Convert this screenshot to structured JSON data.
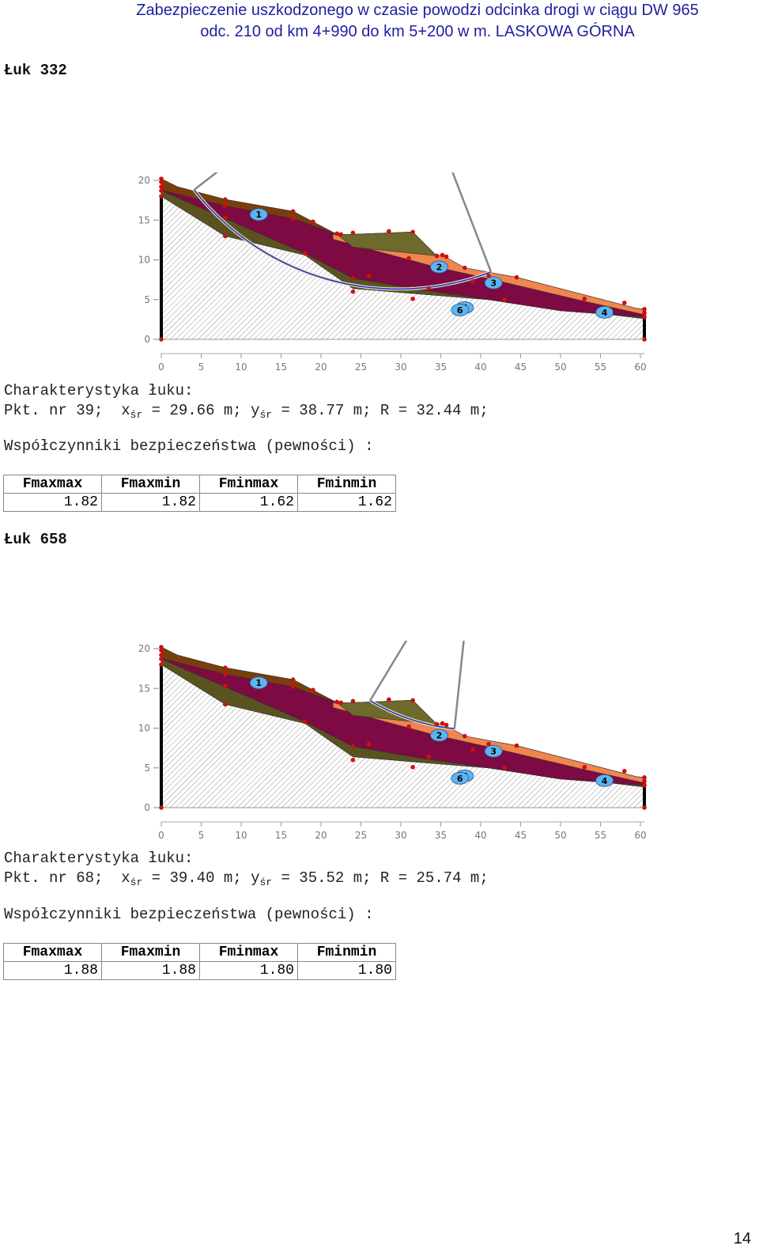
{
  "header": {
    "line1": "Zabezpieczenie uszkodzonego w czasie powodzi odcinka drogi  w ciągu DW 965",
    "line2": "odc. 210 od km 4+990 do km 5+200 w m. LASKOWA GÓRNA"
  },
  "arcs": [
    {
      "heading": "Łuk 332",
      "char_label": "Charakterystyka łuku:",
      "pkt": "Pkt. nr 39;",
      "xs": "x",
      "xs_sub": "śr",
      "xs_val": " = 29.66 m;",
      "ys": "y",
      "ys_sub": "śr",
      "ys_val": " = 38.77 m; R = 32.44 m;",
      "coeff_label": "Współczynniki bezpieczeństwa (pewności) :",
      "headers": [
        "Fmaxmax",
        "Fmaxmin",
        "Fminmax",
        "Fminmin"
      ],
      "values": [
        "1.82",
        "1.82",
        "1.62",
        "1.62"
      ]
    },
    {
      "heading": "Łuk 658",
      "char_label": "Charakterystyka łuku:",
      "pkt": "Pkt. nr 68;",
      "xs": "x",
      "xs_sub": "śr",
      "xs_val": " = 39.40 m;",
      "ys": "y",
      "ys_sub": "śr",
      "ys_val": " = 35.52 m; R = 25.74 m;",
      "coeff_label": "Współczynniki bezpieczeństwa (pewności) :",
      "headers": [
        "Fmaxmax",
        "Fmaxmin",
        "Fminmax",
        "Fminmin"
      ],
      "values": [
        "1.88",
        "1.88",
        "1.80",
        "1.80"
      ]
    }
  ],
  "chart_data": [
    {
      "type": "cross-section",
      "x_ticks": [
        "0",
        "5",
        "10",
        "15",
        "20",
        "25",
        "30",
        "35",
        "40",
        "45",
        "50",
        "55",
        "60"
      ],
      "y_ticks": [
        "0",
        "5",
        "10",
        "15",
        "20"
      ],
      "xlim": [
        0,
        60
      ],
      "ylim": [
        0,
        20
      ],
      "layer_labels": [
        "1",
        "2",
        "3",
        "4",
        "5",
        "6"
      ],
      "slip_circle": {
        "xc": 29.66,
        "yc": 38.77,
        "R": 32.44
      }
    },
    {
      "type": "cross-section",
      "x_ticks": [
        "0",
        "5",
        "10",
        "15",
        "20",
        "25",
        "30",
        "35",
        "40",
        "45",
        "50",
        "55",
        "60"
      ],
      "y_ticks": [
        "0",
        "5",
        "10",
        "15",
        "20"
      ],
      "xlim": [
        0,
        60
      ],
      "ylim": [
        0,
        20
      ],
      "layer_labels": [
        "1",
        "2",
        "3",
        "4",
        "5",
        "6"
      ],
      "slip_circle": {
        "xc": 39.4,
        "yc": 35.52,
        "R": 25.74
      }
    }
  ],
  "colors": {
    "layer1": "#7a3e0c",
    "layer2": "#7d0a42",
    "layer3": "#f0854d",
    "layer4": "#6e6a2c",
    "layer5": "#5a5320",
    "label_bubble": "#5fb4f0",
    "nodes": "#cc1010",
    "header_text": "#1f1fa0"
  },
  "footer": {
    "page": "14"
  }
}
